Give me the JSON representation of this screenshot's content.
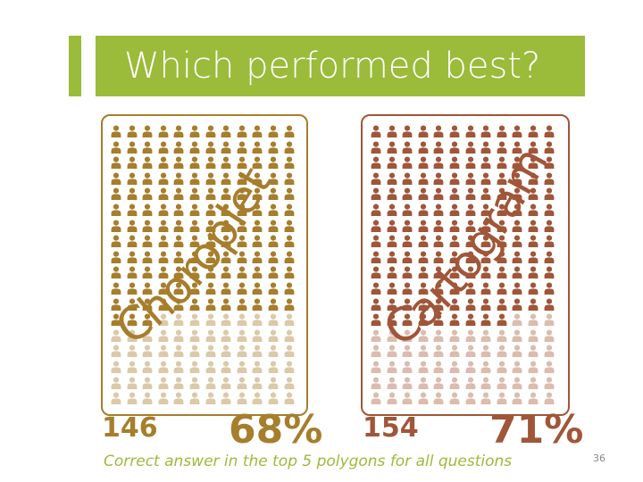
{
  "slide": {
    "title": "Which performed best?",
    "caption": "Correct answer in the top 5 polygons for all questions",
    "slide_number": "36",
    "accent_color": "#9bbb3a"
  },
  "panels": [
    {
      "word": "Choropleth",
      "count": "146",
      "percent": "68%",
      "count_value": 146,
      "percent_value": 68,
      "fill_color": "#a67e2c",
      "faded_color": "#dcc9a9",
      "word_color": "#a67e2c"
    },
    {
      "word": "Cartogram",
      "count": "154",
      "percent": "71%",
      "count_value": 154,
      "percent_value": 71,
      "fill_color": "#a05638",
      "faded_color": "#dbbcae",
      "word_color": "#a05638"
    }
  ],
  "icons": {
    "person": "person-icon",
    "columns": 12,
    "rows": 18
  }
}
